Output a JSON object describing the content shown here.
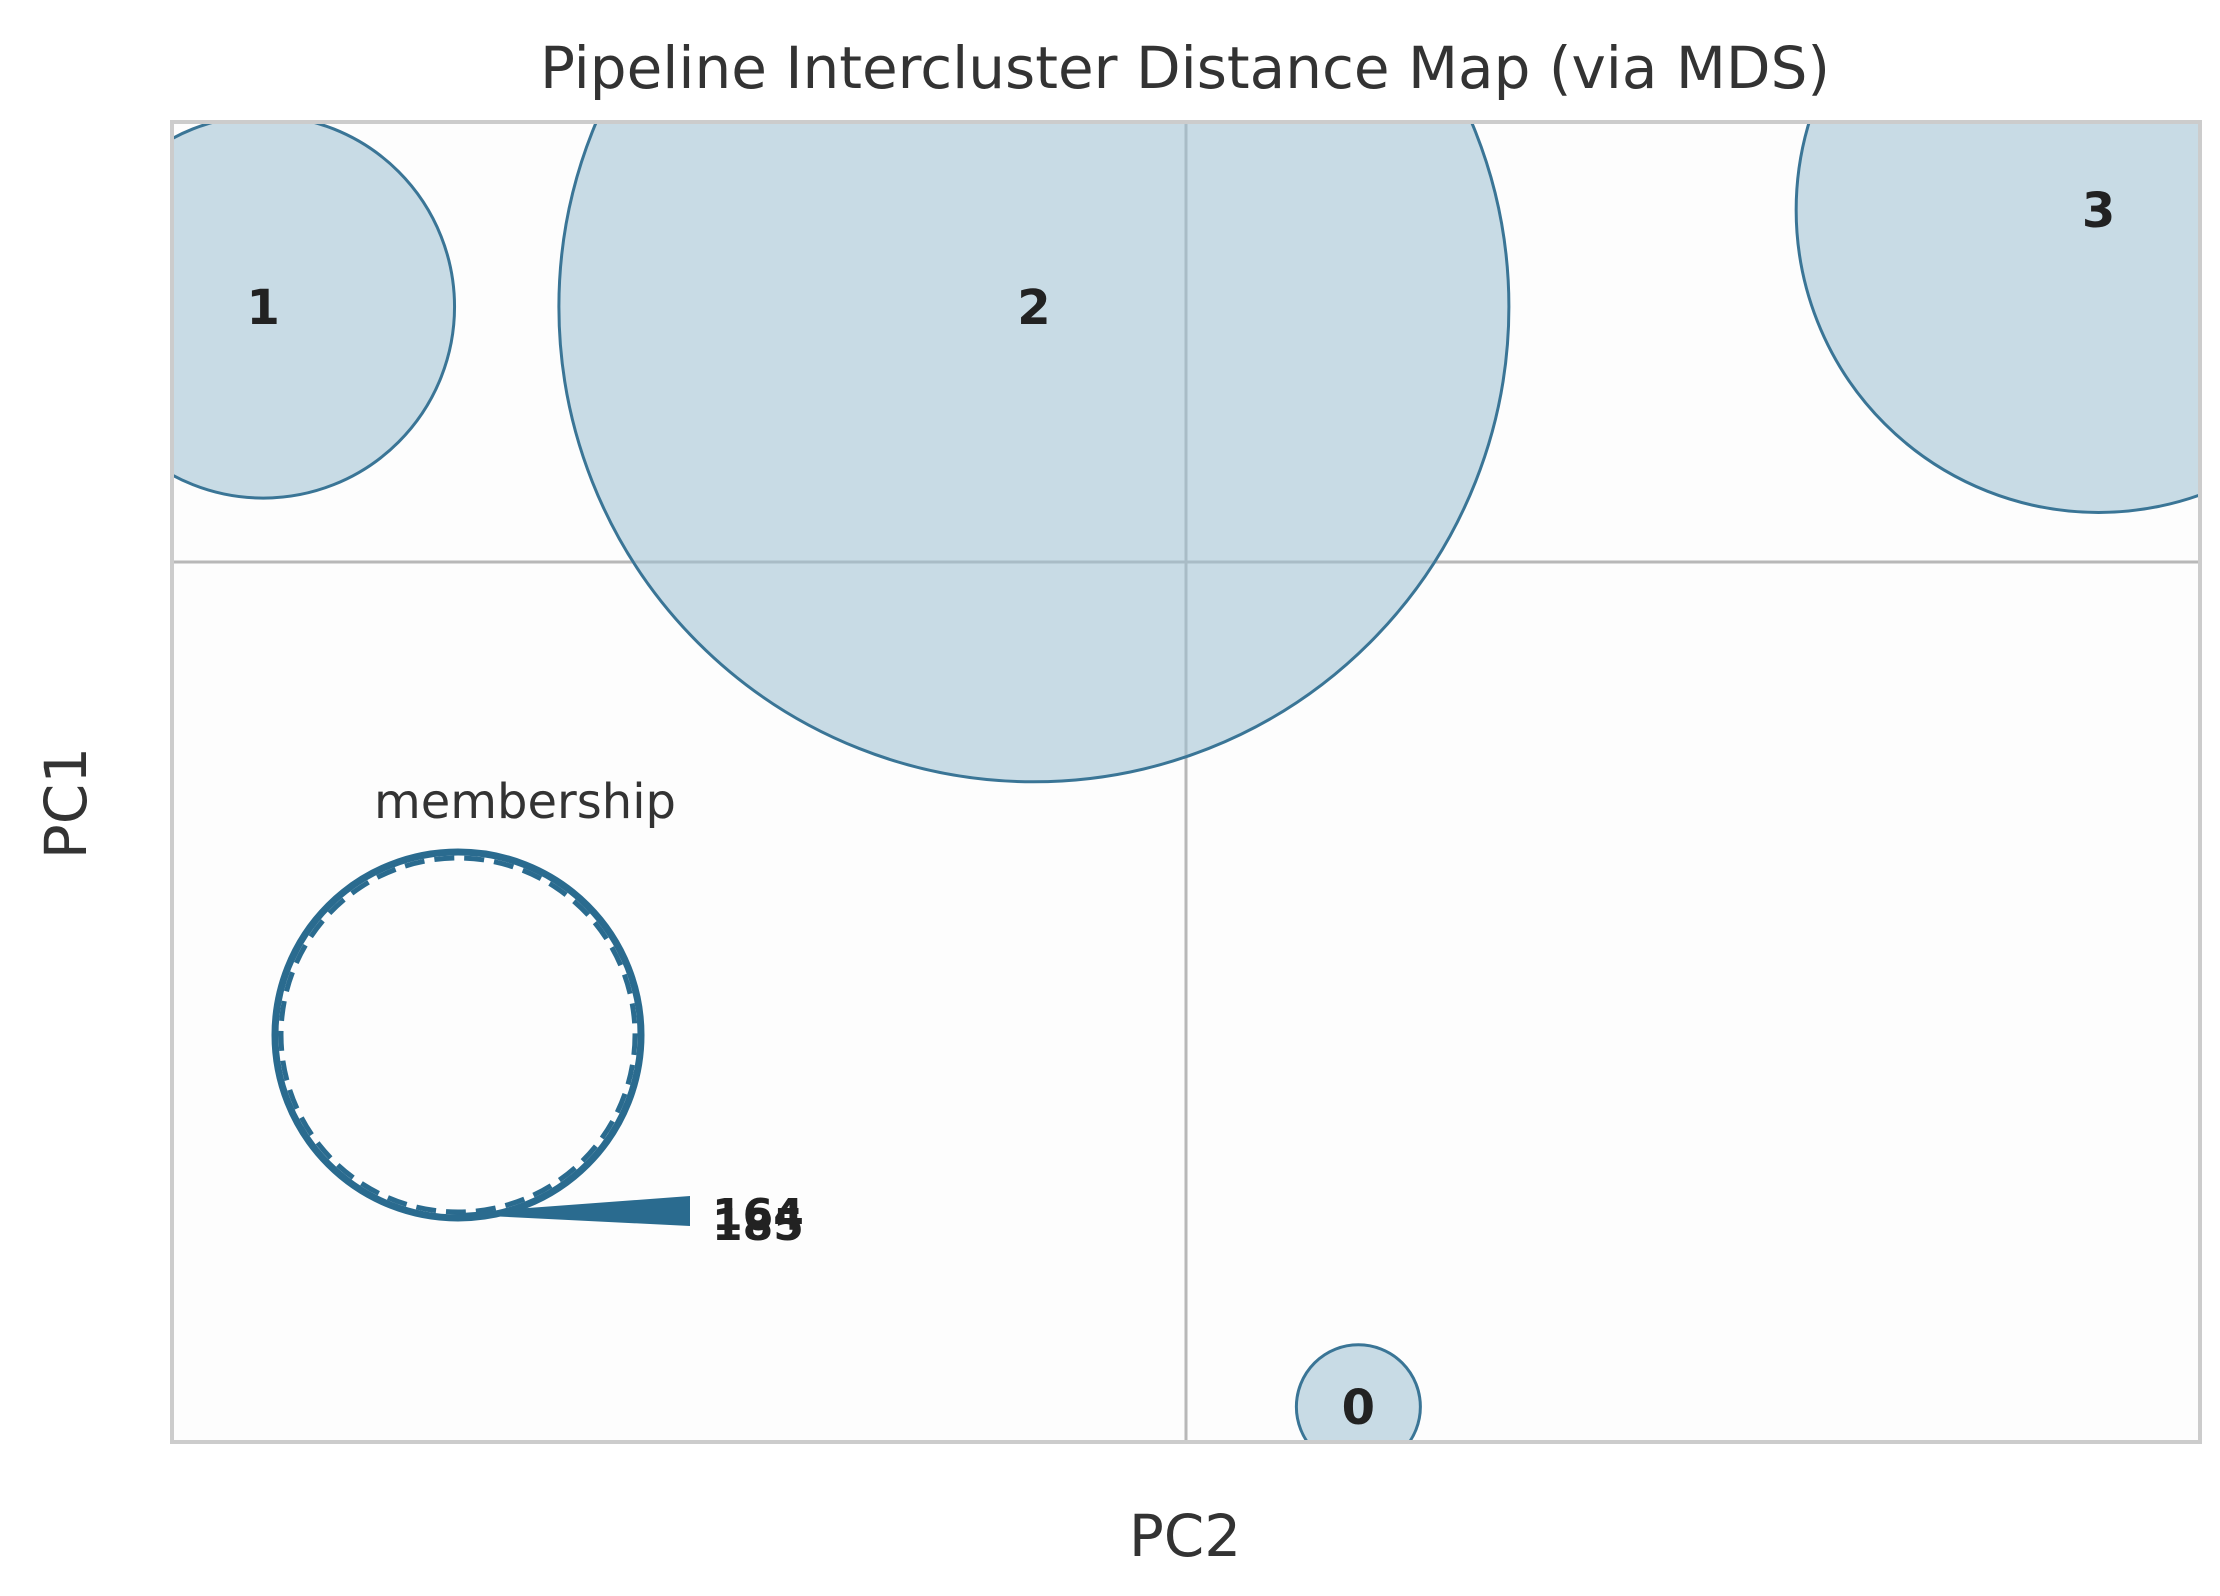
{
  "chart_data": {
    "type": "scatter",
    "title": "Pipeline Intercluster Distance Map (via MDS)",
    "xlabel": "PC2",
    "ylabel": "PC1",
    "xlim": [
      -1.0,
      1.0
    ],
    "ylim": [
      -1.0,
      0.5
    ],
    "grid": true,
    "clusters": [
      {
        "label": "0",
        "x": 0.17,
        "y": -0.96,
        "size": 1
      },
      {
        "label": "1",
        "x": -0.91,
        "y": 0.29,
        "size": 30
      },
      {
        "label": "2",
        "x": -0.15,
        "y": 0.29,
        "size": 185
      },
      {
        "label": "3",
        "x": 0.9,
        "y": 0.4,
        "size": 75
      }
    ],
    "legend": {
      "title": "membership",
      "placement": "lower-left",
      "values": [
        "164",
        "185"
      ]
    },
    "colors": {
      "fill": "#9cbfd1",
      "edge": "#3a7596",
      "legend": "#2a6b8f",
      "grid": "#b8b8b8",
      "frame": "#cccccc"
    }
  }
}
